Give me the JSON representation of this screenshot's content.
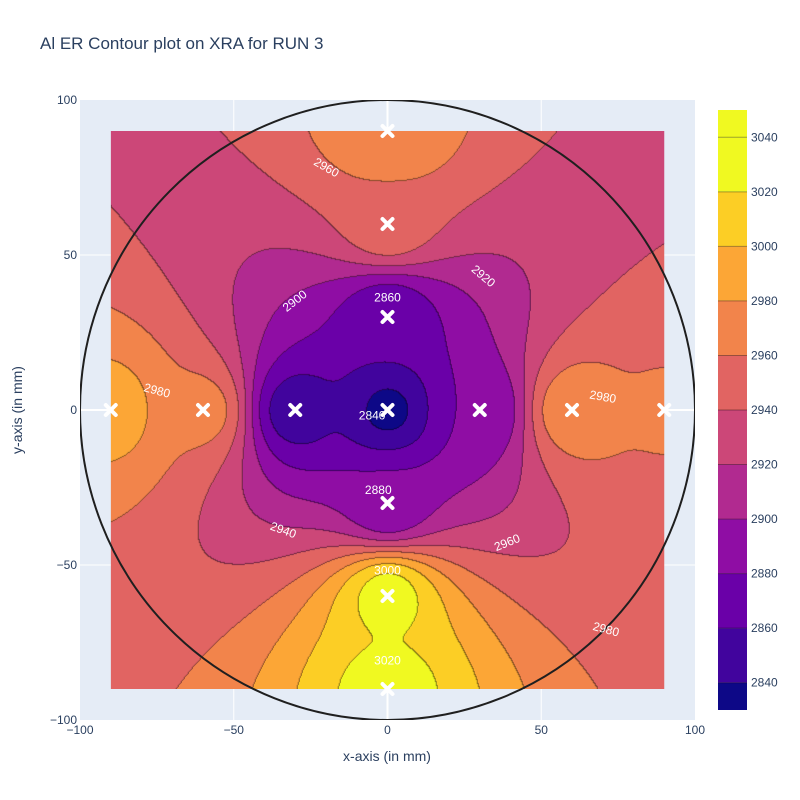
{
  "chart_data": {
    "type": "contour",
    "title": "Al ER Contour plot on XRA for RUN 3",
    "xlabel": "x-axis (in mm)",
    "ylabel": "y-axis (in mm)",
    "xlim": [
      -100,
      100
    ],
    "ylim": [
      -100,
      100
    ],
    "x_ticks": [
      -100,
      -50,
      0,
      50,
      100
    ],
    "y_ticks": [
      -100,
      -50,
      0,
      50,
      100
    ],
    "x_tick_labels": [
      "−100",
      "−50",
      "0",
      "50",
      "100"
    ],
    "y_tick_labels": [
      "−100",
      "−50",
      "0",
      "50",
      "100"
    ],
    "grid": true,
    "data_extent": [
      -90,
      90,
      -90,
      90
    ],
    "wafer_circle": {
      "center": [
        0,
        0
      ],
      "radius": 100
    },
    "measurement_points": [
      {
        "x": 0,
        "y": 90,
        "value": 2980
      },
      {
        "x": 0,
        "y": 60,
        "value": 2955
      },
      {
        "x": 0,
        "y": 30,
        "value": 2862
      },
      {
        "x": 0,
        "y": 0,
        "value": 2835
      },
      {
        "x": 0,
        "y": -30,
        "value": 2882
      },
      {
        "x": 0,
        "y": -60,
        "value": 3030
      },
      {
        "x": 0,
        "y": -90,
        "value": 3030
      },
      {
        "x": -90,
        "y": 0,
        "value": 2990
      },
      {
        "x": -60,
        "y": 0,
        "value": 2968
      },
      {
        "x": -30,
        "y": 0,
        "value": 2848
      },
      {
        "x": 30,
        "y": 0,
        "value": 2880
      },
      {
        "x": 60,
        "y": 0,
        "value": 2975
      },
      {
        "x": 90,
        "y": 0,
        "value": 2962
      }
    ],
    "contour_levels": [
      2840,
      2860,
      2880,
      2900,
      2920,
      2940,
      2960,
      2980,
      3000,
      3020,
      3040
    ],
    "colorbar": {
      "min": 2830,
      "max": 3050,
      "ticks": [
        2840,
        2860,
        2880,
        2900,
        2920,
        2940,
        2960,
        2980,
        3000,
        3020,
        3040
      ],
      "tick_labels": [
        "2840",
        "2860",
        "2880",
        "2900",
        "2920",
        "2940",
        "2960",
        "2980",
        "3000",
        "3020",
        "3040"
      ],
      "colors": [
        "#0d0887",
        "#41049d",
        "#6a00a8",
        "#8f0da4",
        "#b12a90",
        "#cc4778",
        "#e16462",
        "#f2844b",
        "#fca636",
        "#fcce25",
        "#f0f921"
      ]
    },
    "contour_labels": [
      {
        "text": "2960",
        "x": -20,
        "y": 78,
        "angle": 30
      },
      {
        "text": "2920",
        "x": 31,
        "y": 43,
        "angle": 40
      },
      {
        "text": "2900",
        "x": -30,
        "y": 35,
        "angle": -38
      },
      {
        "text": "2860",
        "x": 0,
        "y": 36,
        "angle": 0
      },
      {
        "text": "2980",
        "x": -75,
        "y": 6,
        "angle": 15
      },
      {
        "text": "2980",
        "x": 70,
        "y": 4,
        "angle": 10
      },
      {
        "text": "2840",
        "x": -5,
        "y": -2,
        "angle": 0
      },
      {
        "text": "2880",
        "x": -3,
        "y": -26,
        "angle": 0
      },
      {
        "text": "2940",
        "x": -34,
        "y": -39,
        "angle": 20
      },
      {
        "text": "2960",
        "x": 39,
        "y": -43,
        "angle": -22
      },
      {
        "text": "3000",
        "x": 0,
        "y": -52,
        "angle": 0
      },
      {
        "text": "3020",
        "x": 0,
        "y": -81,
        "angle": 0
      },
      {
        "text": "2980",
        "x": 71,
        "y": -71,
        "angle": 15
      }
    ]
  }
}
